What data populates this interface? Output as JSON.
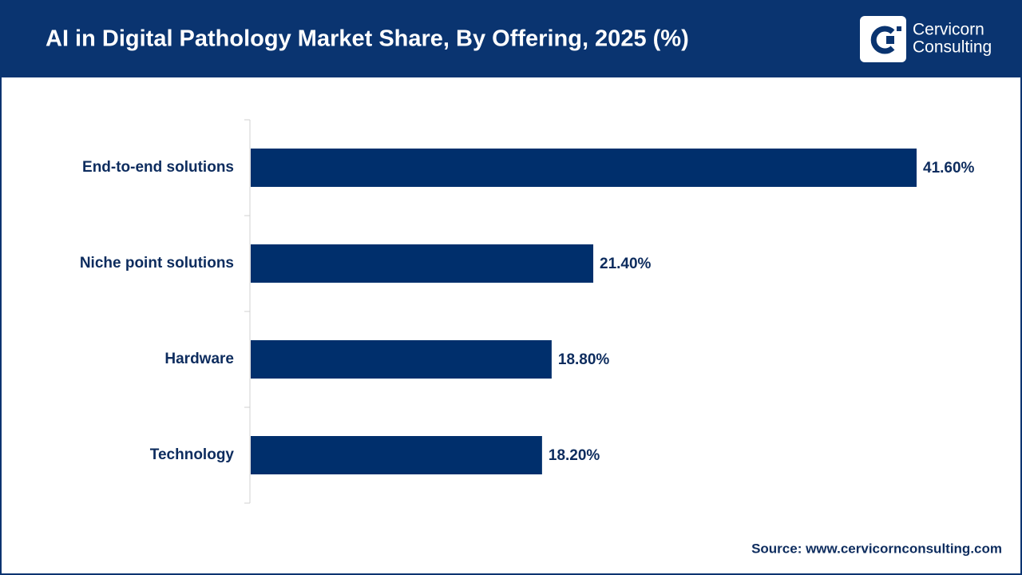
{
  "chart_data": {
    "type": "bar",
    "orientation": "horizontal",
    "title": "AI in Digital Pathology Market Share, By Offering, 2025 (%)",
    "categories": [
      "End-to-end solutions",
      "Niche point solutions",
      "Hardware",
      "Technology"
    ],
    "values": [
      41.6,
      21.4,
      18.8,
      18.2
    ],
    "value_labels": [
      "41.60%",
      "21.40%",
      "18.80%",
      "18.20%"
    ],
    "color": "#002f6c",
    "source": "Source: www.cervicornconsulting.com"
  },
  "logo": {
    "line1": "Cervicorn",
    "line2": "Consulting"
  }
}
